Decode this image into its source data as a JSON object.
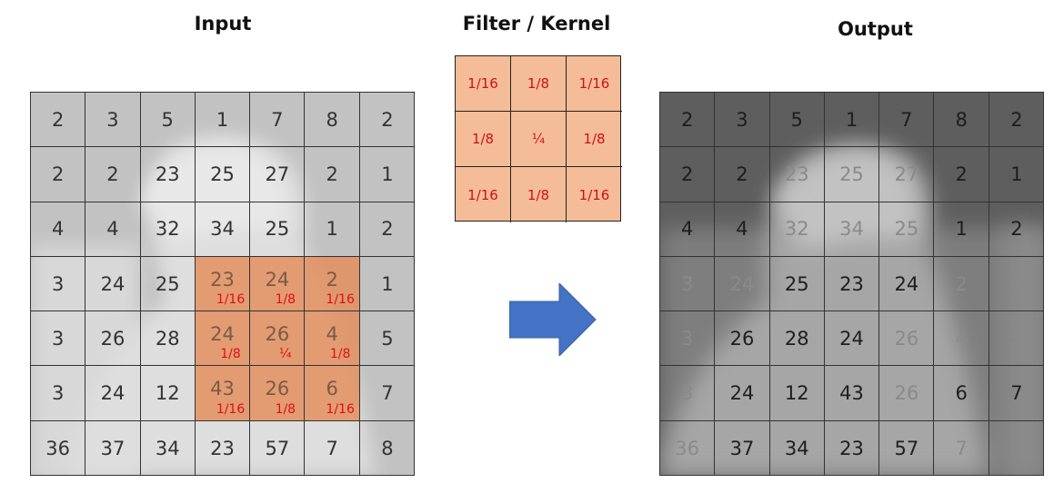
{
  "titles": {
    "input": "Input",
    "kernel": "Filter / Kernel",
    "output": "Output"
  },
  "colors": {
    "highlight": "#e48c5a",
    "kernel_fill": "#f4bd98",
    "weight_text": "#e01010",
    "arrow": "#4472c4"
  },
  "input": {
    "rows": [
      [
        "2",
        "3",
        "5",
        "1",
        "7",
        "8",
        "2"
      ],
      [
        "2",
        "2",
        "23",
        "25",
        "27",
        "2",
        "1"
      ],
      [
        "4",
        "4",
        "32",
        "34",
        "25",
        "1",
        "2"
      ],
      [
        "3",
        "24",
        "25",
        "23",
        "24",
        "2",
        "1"
      ],
      [
        "3",
        "26",
        "28",
        "24",
        "26",
        "4",
        "5"
      ],
      [
        "3",
        "24",
        "12",
        "43",
        "26",
        "6",
        "7"
      ],
      [
        "36",
        "37",
        "34",
        "23",
        "57",
        "7",
        "8"
      ]
    ],
    "highlight_weights": [
      [
        "1/16",
        "1/8",
        "1/16"
      ],
      [
        "1/8",
        "¼",
        "1/8"
      ],
      [
        "1/16",
        "1/8",
        "1/16"
      ]
    ]
  },
  "kernel": {
    "rows": [
      [
        "1/16",
        "1/8",
        "1/16"
      ],
      [
        "1/8",
        "¼",
        "1/8"
      ],
      [
        "1/16",
        "1/8",
        "1/16"
      ]
    ]
  },
  "output": {
    "rows": [
      [
        "2",
        "3",
        "5",
        "1",
        "7",
        "8",
        "2"
      ],
      [
        "2",
        "2",
        "23",
        "25",
        "27",
        "2",
        "1"
      ],
      [
        "4",
        "4",
        "32",
        "34",
        "25",
        "1",
        "2"
      ],
      [
        "3",
        "24",
        "25",
        "23",
        "24",
        "2",
        "1"
      ],
      [
        "3",
        "26",
        "28",
        "24",
        "26",
        "4",
        "5"
      ],
      [
        "3",
        "24",
        "12",
        "43",
        "26",
        "6",
        "7"
      ],
      [
        "36",
        "37",
        "34",
        "23",
        "57",
        "7",
        "8"
      ]
    ]
  }
}
